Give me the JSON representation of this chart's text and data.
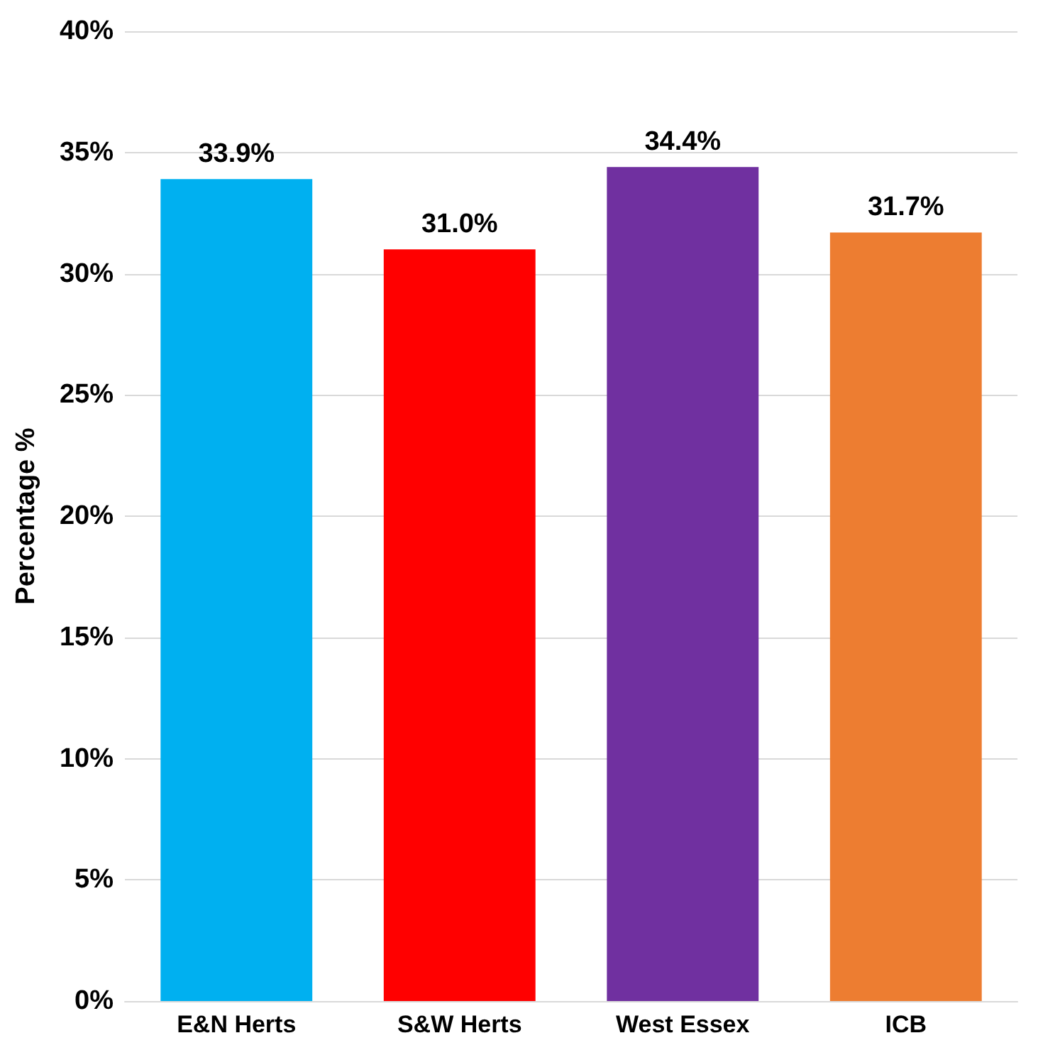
{
  "chart_data": {
    "type": "bar",
    "ylabel": "Percentage %",
    "categories": [
      "E&N Herts",
      "S&W Herts",
      "West Essex",
      "ICB"
    ],
    "values": [
      33.9,
      31.0,
      34.4,
      31.7
    ],
    "colors": [
      "#00b0f0",
      "#ff0000",
      "#7030a0",
      "#ed7d31"
    ],
    "value_labels": [
      "33.9%",
      "31.0%",
      "34.4%",
      "31.7%"
    ],
    "ylim": [
      0,
      40
    ],
    "yticks": [
      {
        "value": 0,
        "label": "0%"
      },
      {
        "value": 5,
        "label": "5%"
      },
      {
        "value": 10,
        "label": "10%"
      },
      {
        "value": 15,
        "label": "15%"
      },
      {
        "value": 20,
        "label": "20%"
      },
      {
        "value": 25,
        "label": "25%"
      },
      {
        "value": 30,
        "label": "30%"
      },
      {
        "value": 35,
        "label": "35%"
      },
      {
        "value": 40,
        "label": "40%"
      }
    ],
    "grid": "y"
  }
}
